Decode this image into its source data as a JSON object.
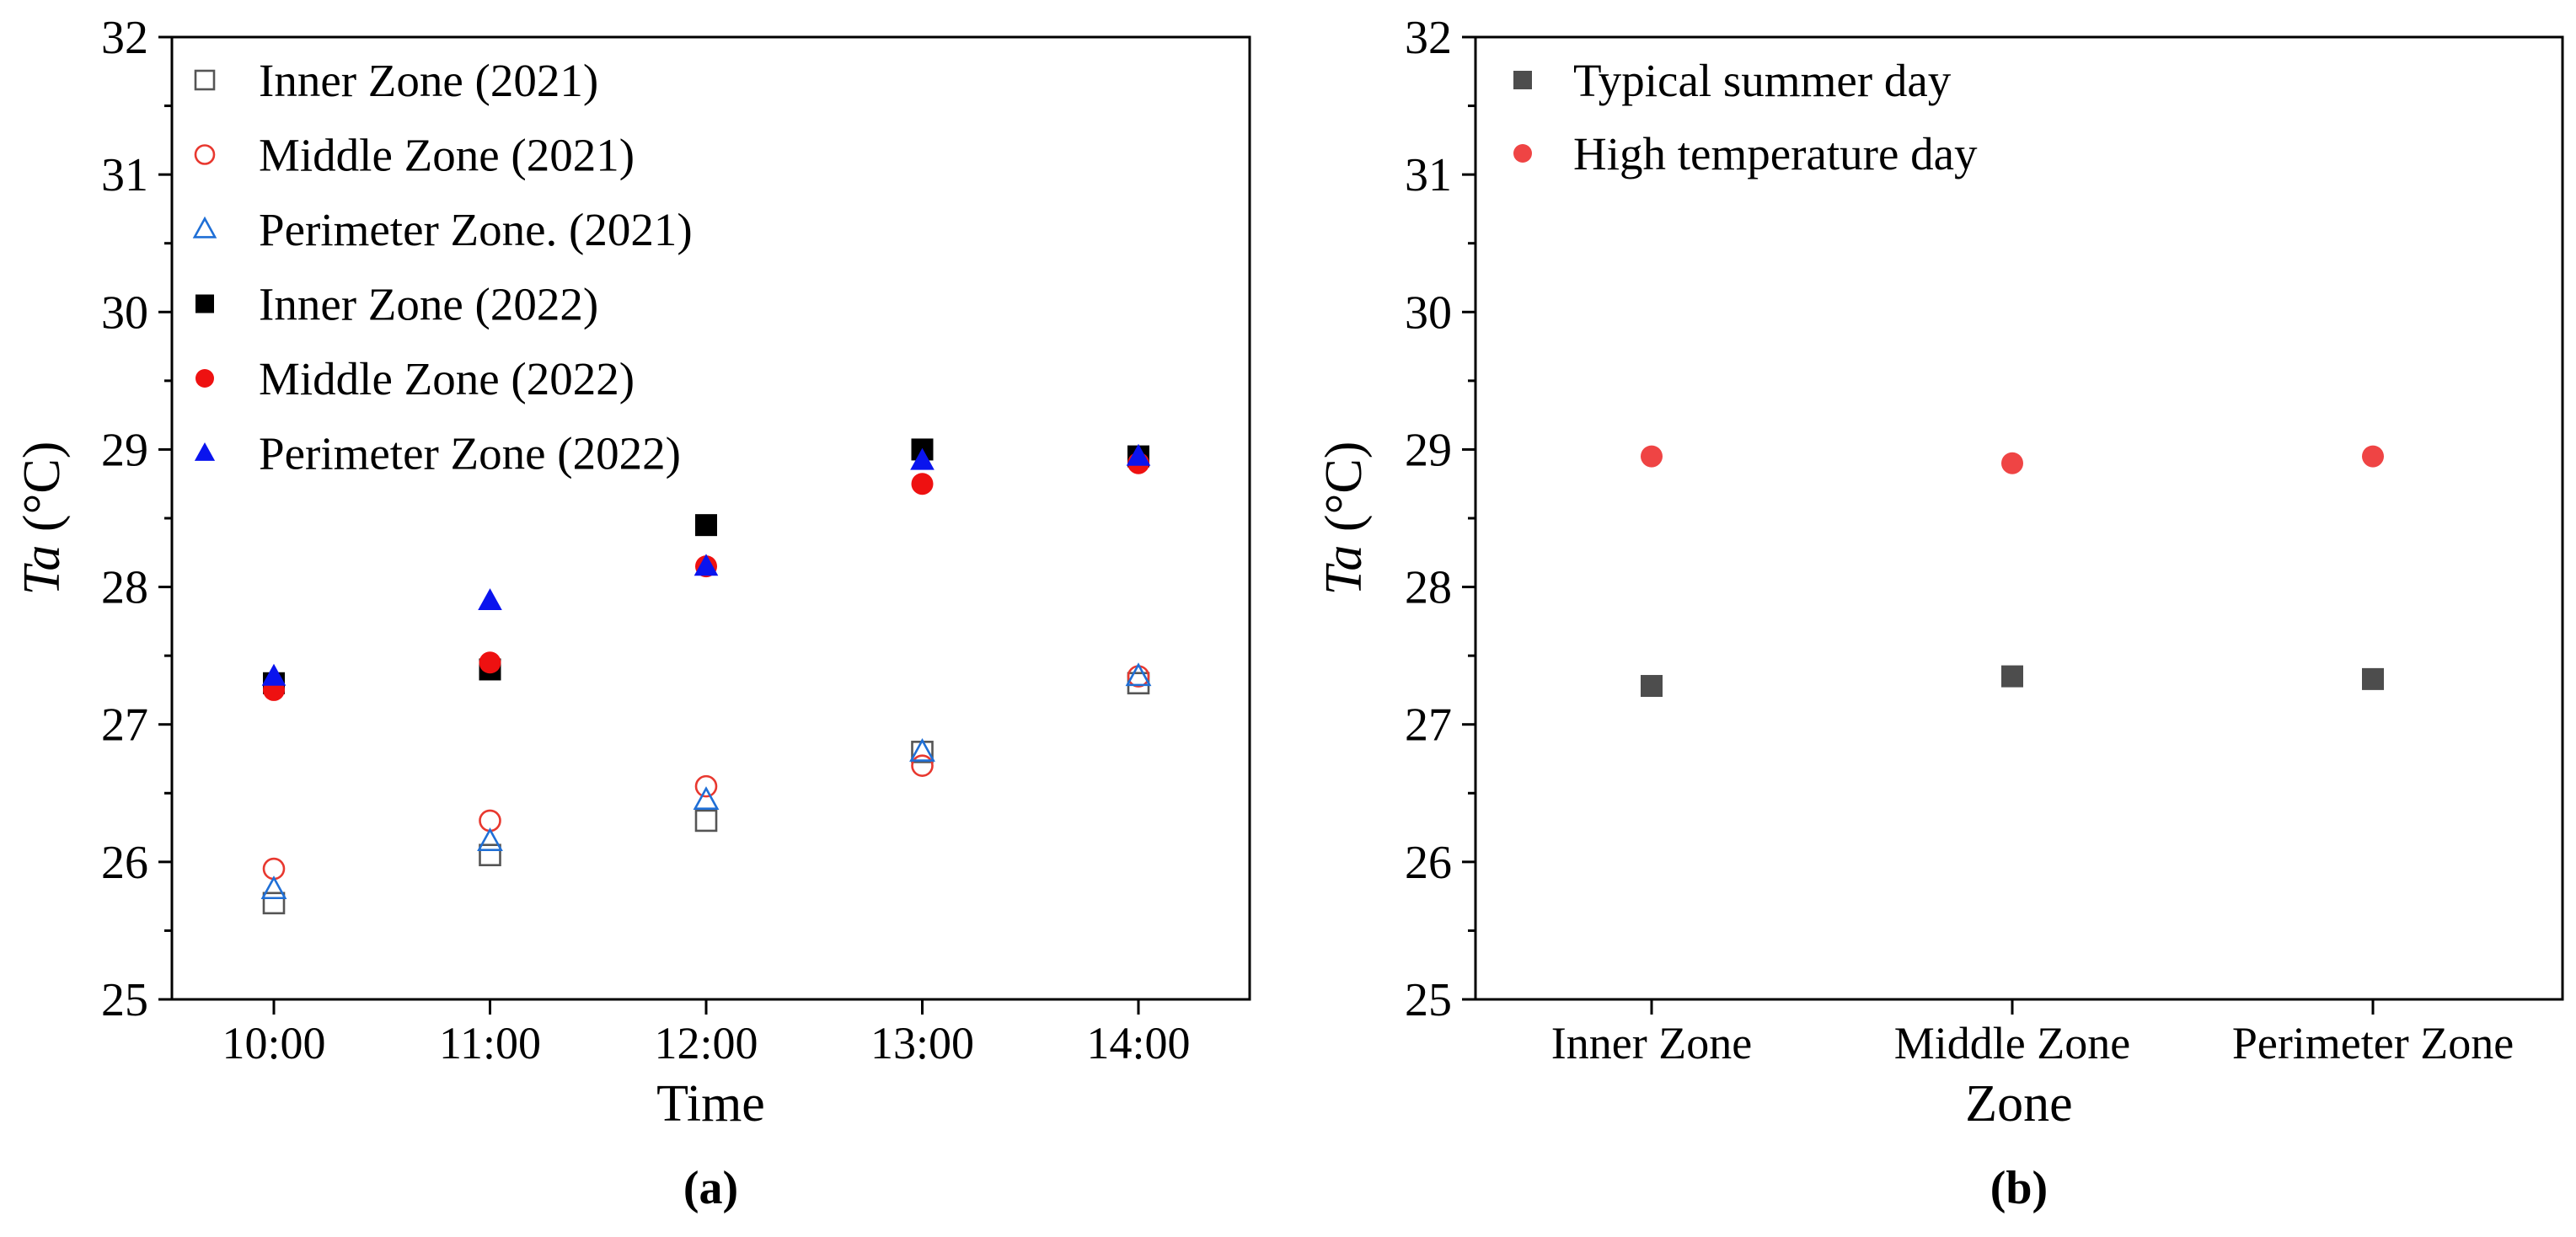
{
  "chart_data": [
    {
      "type": "scatter",
      "panel_label": "(a)",
      "xlabel": "Time",
      "ylabel_italic": "Ta",
      "ylabel_unit": "(°C)",
      "categories": [
        "10:00",
        "11:00",
        "12:00",
        "13:00",
        "14:00"
      ],
      "ylim": [
        25,
        32
      ],
      "yticks": [
        "25",
        "26",
        "27",
        "28",
        "29",
        "30",
        "31",
        "32"
      ],
      "legend_position": "top-left",
      "series": [
        {
          "name": "Inner Zone (2021)",
          "marker": "square",
          "filled": false,
          "color": "#555555",
          "values": [
            25.7,
            26.05,
            26.3,
            26.8,
            27.3
          ]
        },
        {
          "name": "Middle Zone (2021)",
          "marker": "circle",
          "filled": false,
          "color": "#e8382f",
          "values": [
            25.95,
            26.3,
            26.55,
            26.7,
            27.35
          ]
        },
        {
          "name": "Perimeter Zone. (2021)",
          "marker": "triangle",
          "filled": false,
          "color": "#1f6fd6",
          "values": [
            25.8,
            26.15,
            26.45,
            26.8,
            27.35
          ]
        },
        {
          "name": "Inner Zone (2022)",
          "marker": "square",
          "filled": true,
          "color": "#000000",
          "values": [
            27.3,
            27.4,
            28.45,
            29.0,
            28.95
          ]
        },
        {
          "name": "Middle Zone (2022)",
          "marker": "circle",
          "filled": true,
          "color": "#ee1111",
          "values": [
            27.25,
            27.45,
            28.15,
            28.75,
            28.9
          ]
        },
        {
          "name": "Perimeter Zone (2022)",
          "marker": "triangle",
          "filled": true,
          "color": "#0a14ee",
          "values": [
            27.35,
            27.9,
            28.15,
            28.92,
            28.95
          ]
        }
      ]
    },
    {
      "type": "scatter",
      "panel_label": "(b)",
      "xlabel": "Zone",
      "ylabel_italic": "Ta",
      "ylabel_unit": "(°C)",
      "categories": [
        "Inner Zone",
        "Middle Zone",
        "Perimeter Zone"
      ],
      "ylim": [
        25,
        32
      ],
      "yticks": [
        "25",
        "26",
        "27",
        "28",
        "29",
        "30",
        "31",
        "32"
      ],
      "legend_position": "top-left",
      "series": [
        {
          "name": "Typical summer day",
          "marker": "square",
          "filled": true,
          "color": "#4d4d4d",
          "values": [
            27.28,
            27.35,
            27.33
          ]
        },
        {
          "name": "High temperature day",
          "marker": "circle",
          "filled": true,
          "color": "#ef4444",
          "values": [
            28.95,
            28.9,
            28.95
          ]
        }
      ]
    }
  ]
}
